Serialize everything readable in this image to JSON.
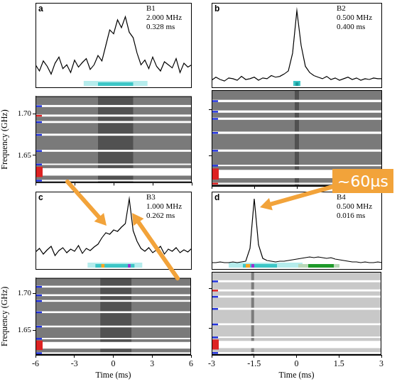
{
  "chart_data": [
    {
      "letter": "a",
      "annotations": [
        "B1",
        "2.000 MHz",
        "0.328 ms"
      ],
      "profile": {
        "type": "line",
        "color": "#000000",
        "tick_labels": false,
        "xlim": [
          -6,
          6
        ],
        "ylim": [
          0,
          1.1
        ],
        "x": [
          -6,
          -5.7,
          -5.4,
          -5.1,
          -4.8,
          -4.5,
          -4.2,
          -3.9,
          -3.6,
          -3.3,
          -3,
          -2.7,
          -2.4,
          -2.1,
          -1.8,
          -1.5,
          -1.2,
          -0.9,
          -0.6,
          -0.3,
          0,
          0.3,
          0.6,
          0.9,
          1.2,
          1.5,
          1.8,
          2.1,
          2.4,
          2.7,
          3,
          3.3,
          3.6,
          3.9,
          4.2,
          4.5,
          4.8,
          5.1,
          5.4,
          5.7,
          6
        ],
        "values": [
          0.3,
          0.22,
          0.35,
          0.28,
          0.18,
          0.32,
          0.4,
          0.25,
          0.3,
          0.2,
          0.36,
          0.27,
          0.33,
          0.38,
          0.24,
          0.3,
          0.42,
          0.35,
          0.55,
          0.75,
          0.7,
          0.88,
          0.78,
          0.92,
          0.72,
          0.65,
          0.45,
          0.3,
          0.36,
          0.25,
          0.4,
          0.28,
          0.22,
          0.34,
          0.3,
          0.26,
          0.38,
          0.2,
          0.32,
          0.27,
          0.3
        ],
        "windows": [
          {
            "start": -2.3,
            "end": 2.6,
            "color": "#b5ecec"
          },
          {
            "start": -1.2,
            "end": 1.5,
            "color": "#3cc6c6"
          }
        ]
      },
      "waterfall": {
        "type": "waterfall",
        "color": "#7a7a7a",
        "tick_labels": "y",
        "y_label": "Frequency (GHz)",
        "xlim": [
          -6,
          6
        ],
        "xticks": [
          -6,
          -3,
          0,
          3,
          6
        ],
        "ylim": [
          1.617,
          1.721
        ],
        "yticks": [
          1.65,
          {
            "value": 1.7,
            "label": "1.70"
          }
        ],
        "signal": [
          -1.2,
          1.5
        ],
        "masked": [
          {
            "range": [
              1.708,
              1.7105
            ],
            "color": "#2233dd"
          },
          {
            "range": [
              1.6965,
              1.699
            ],
            "color": "#dd2222"
          },
          {
            "range": [
              1.6888,
              1.6912
            ],
            "color": "#2233dd"
          },
          {
            "range": [
              1.6735,
              1.676
            ],
            "color": "#2233dd"
          },
          {
            "range": [
              1.6542,
              1.6566
            ],
            "color": "#2233dd"
          },
          {
            "range": [
              1.6385,
              1.64
            ],
            "color": "#2233dd"
          },
          {
            "range": [
              1.6255,
              1.6345
            ],
            "color": "#dd2222"
          },
          {
            "range": [
              1.619,
              1.6205
            ],
            "color": "#2233dd"
          }
        ]
      }
    },
    {
      "letter": "b",
      "annotations": [
        "B2",
        "0.500 MHz",
        "0.400 ms"
      ],
      "profile": {
        "type": "line",
        "color": "#000000",
        "tick_labels": false,
        "xlim": [
          -6,
          6
        ],
        "ylim": [
          0,
          1.1
        ],
        "x": [
          -6,
          -5.7,
          -5.4,
          -5.1,
          -4.8,
          -4.5,
          -4.2,
          -3.9,
          -3.6,
          -3.3,
          -3,
          -2.7,
          -2.4,
          -2.1,
          -1.8,
          -1.5,
          -1.2,
          -0.9,
          -0.6,
          -0.3,
          0,
          0.3,
          0.6,
          0.9,
          1.2,
          1.5,
          1.8,
          2.1,
          2.4,
          2.7,
          3,
          3.3,
          3.6,
          3.9,
          4.2,
          4.5,
          4.8,
          5.1,
          5.4,
          5.7,
          6
        ],
        "values": [
          0.1,
          0.14,
          0.11,
          0.09,
          0.13,
          0.12,
          0.1,
          0.15,
          0.11,
          0.12,
          0.14,
          0.1,
          0.13,
          0.12,
          0.16,
          0.14,
          0.15,
          0.18,
          0.22,
          0.45,
          1.0,
          0.55,
          0.28,
          0.2,
          0.16,
          0.14,
          0.12,
          0.15,
          0.11,
          0.13,
          0.1,
          0.12,
          0.14,
          0.11,
          0.13,
          0.1,
          0.12,
          0.11,
          0.13,
          0.12,
          0.12
        ],
        "windows": [
          {
            "start": -0.25,
            "end": 0.25,
            "color": "#3cc6c6"
          },
          {
            "start": -0.1,
            "end": 0.12,
            "color": "#1a9a9a"
          }
        ]
      },
      "waterfall": {
        "type": "waterfall",
        "color": "#7a7a7a",
        "tick_labels": false,
        "xlim": [
          -6,
          6
        ],
        "xticks": [
          -6,
          -3,
          0,
          3,
          6
        ],
        "ylim": [
          1.617,
          1.721
        ],
        "yticks": [
          1.65,
          {
            "value": 1.7,
            "label": "1.70"
          }
        ],
        "signal": [
          -0.15,
          0.15
        ],
        "masked": [
          {
            "range": [
              1.708,
              1.7105
            ],
            "color": "#2233dd"
          },
          {
            "range": [
              1.6965,
              1.699
            ],
            "color": "#2233dd"
          },
          {
            "range": [
              1.6888,
              1.6912
            ],
            "color": "#2233dd"
          },
          {
            "range": [
              1.6735,
              1.676
            ],
            "color": "#2233dd"
          },
          {
            "range": [
              1.6542,
              1.6566
            ],
            "color": "#2233dd"
          },
          {
            "range": [
              1.6385,
              1.64
            ],
            "color": "#2233dd"
          },
          {
            "range": [
              1.6255,
              1.6345
            ],
            "color": "#dd2222"
          },
          {
            "range": [
              1.619,
              1.6205
            ],
            "color": "#dd2222"
          }
        ]
      }
    },
    {
      "letter": "c",
      "annotations": [
        "B3",
        "1.000 MHz",
        "0.262 ms"
      ],
      "profile": {
        "type": "line",
        "color": "#000000",
        "tick_labels": false,
        "xlim": [
          -6,
          6
        ],
        "ylim": [
          0,
          1.1
        ],
        "x": [
          -6,
          -5.7,
          -5.4,
          -5.1,
          -4.8,
          -4.5,
          -4.2,
          -3.9,
          -3.6,
          -3.3,
          -3,
          -2.7,
          -2.4,
          -2.1,
          -1.8,
          -1.5,
          -1.2,
          -0.9,
          -0.6,
          -0.3,
          0,
          0.3,
          0.6,
          0.9,
          1.2,
          1.5,
          1.8,
          2.1,
          2.4,
          2.7,
          3,
          3.3,
          3.6,
          3.9,
          4.2,
          4.5,
          4.8,
          5.1,
          5.4,
          5.7,
          6
        ],
        "values": [
          0.25,
          0.3,
          0.22,
          0.28,
          0.33,
          0.2,
          0.27,
          0.31,
          0.24,
          0.29,
          0.26,
          0.34,
          0.23,
          0.3,
          0.27,
          0.32,
          0.36,
          0.45,
          0.52,
          0.5,
          0.56,
          0.54,
          0.6,
          0.65,
          1.0,
          0.55,
          0.4,
          0.3,
          0.26,
          0.31,
          0.24,
          0.28,
          0.33,
          0.22,
          0.29,
          0.26,
          0.31,
          0.24,
          0.28,
          0.25,
          0.3
        ],
        "windows": [
          {
            "start": -2.0,
            "end": 2.2,
            "color": "#b5ecec"
          },
          {
            "start": -1.4,
            "end": 1.6,
            "color": "#3cc6c6"
          },
          {
            "start": -0.95,
            "end": -0.7,
            "color": "#f5a623"
          },
          {
            "start": 1.1,
            "end": 1.3,
            "color": "#9b30d0"
          }
        ]
      },
      "waterfall": {
        "type": "waterfall",
        "color": "#7a7a7a",
        "x_label": "Time (ms)",
        "y_label": "Frequency (GHz)",
        "xlim": [
          -6,
          6
        ],
        "xticks": [
          -6,
          -3,
          0,
          3,
          6
        ],
        "ylim": [
          1.617,
          1.721
        ],
        "yticks": [
          1.65,
          {
            "value": 1.7,
            "label": "1.70"
          }
        ],
        "signal": [
          -1.0,
          1.4
        ],
        "masked": [
          {
            "range": [
              1.708,
              1.7105
            ],
            "color": "#2233dd"
          },
          {
            "range": [
              1.6965,
              1.699
            ],
            "color": "#2233dd"
          },
          {
            "range": [
              1.6888,
              1.6912
            ],
            "color": "#2233dd"
          },
          {
            "range": [
              1.6735,
              1.676
            ],
            "color": "#2233dd"
          },
          {
            "range": [
              1.6542,
              1.6566
            ],
            "color": "#2233dd"
          },
          {
            "range": [
              1.6385,
              1.64
            ],
            "color": "#2233dd"
          },
          {
            "range": [
              1.6255,
              1.6345
            ],
            "color": "#dd2222"
          },
          {
            "range": [
              1.619,
              1.6205
            ],
            "color": "#2233dd"
          }
        ]
      }
    },
    {
      "letter": "d",
      "annotations": [
        "B4",
        "0.500 MHz",
        "0.016 ms"
      ],
      "profile": {
        "type": "line",
        "color": "#000000",
        "tick_labels": false,
        "xlim": [
          -3,
          3
        ],
        "ylim": [
          0,
          1.1
        ],
        "x": [
          -3,
          -2.85,
          -2.7,
          -2.55,
          -2.4,
          -2.25,
          -2.1,
          -1.95,
          -1.8,
          -1.65,
          -1.5,
          -1.35,
          -1.2,
          -1.05,
          -0.9,
          -0.75,
          -0.6,
          -0.45,
          -0.3,
          -0.15,
          0,
          0.15,
          0.3,
          0.45,
          0.6,
          0.75,
          0.9,
          1.05,
          1.2,
          1.35,
          1.5,
          1.65,
          1.8,
          1.95,
          2.1,
          2.25,
          2.4,
          2.55,
          2.7,
          2.85,
          3
        ],
        "values": [
          0.1,
          0.1,
          0.11,
          0.1,
          0.1,
          0.11,
          0.1,
          0.11,
          0.12,
          0.3,
          1.0,
          0.35,
          0.16,
          0.13,
          0.12,
          0.11,
          0.12,
          0.12,
          0.13,
          0.14,
          0.15,
          0.16,
          0.17,
          0.18,
          0.17,
          0.18,
          0.17,
          0.16,
          0.17,
          0.15,
          0.14,
          0.13,
          0.12,
          0.11,
          0.11,
          0.1,
          0.11,
          0.1,
          0.1,
          0.11,
          0.1
        ],
        "windows": [
          {
            "start": -2.4,
            "end": 0.2,
            "color": "#b5ecec"
          },
          {
            "start": -1.9,
            "end": -0.7,
            "color": "#3cc6c6"
          },
          {
            "start": 0.05,
            "end": 1.5,
            "color": "#b8d8b8"
          },
          {
            "start": 0.4,
            "end": 1.3,
            "color": "#1f9a2a"
          },
          {
            "start": -1.8,
            "end": -1.65,
            "color": "#f5a623"
          },
          {
            "start": -1.6,
            "end": -1.5,
            "color": "#9b30d0"
          }
        ]
      },
      "waterfall": {
        "type": "waterfall",
        "color": "#c8c8c8",
        "tick_labels": "x",
        "x_label": "Time (ms)",
        "xlim": [
          -3,
          3
        ],
        "xticks": [
          -3,
          -1.5,
          0,
          1.5,
          3
        ],
        "ylim": [
          1.617,
          1.721
        ],
        "yticks": [
          1.65,
          {
            "value": 1.7,
            "label": "1.70"
          }
        ],
        "signal": [
          -1.6,
          -1.5
        ],
        "masked": [
          {
            "range": [
              1.708,
              1.7105
            ],
            "color": "#2233dd"
          },
          {
            "range": [
              1.6965,
              1.699
            ],
            "color": "#dd2222"
          },
          {
            "range": [
              1.6888,
              1.6912
            ],
            "color": "#2233dd"
          },
          {
            "range": [
              1.6735,
              1.676
            ],
            "color": "#2233dd"
          },
          {
            "range": [
              1.6542,
              1.6566
            ],
            "color": "#2233dd"
          },
          {
            "range": [
              1.6385,
              1.64
            ],
            "color": "#2233dd"
          },
          {
            "range": [
              1.6255,
              1.6345
            ],
            "color": "#dd2222"
          },
          {
            "range": [
              1.619,
              1.6205
            ],
            "color": "#2233dd"
          }
        ]
      }
    }
  ],
  "callout": {
    "text": "~60µs",
    "color": "#f2a33a"
  }
}
